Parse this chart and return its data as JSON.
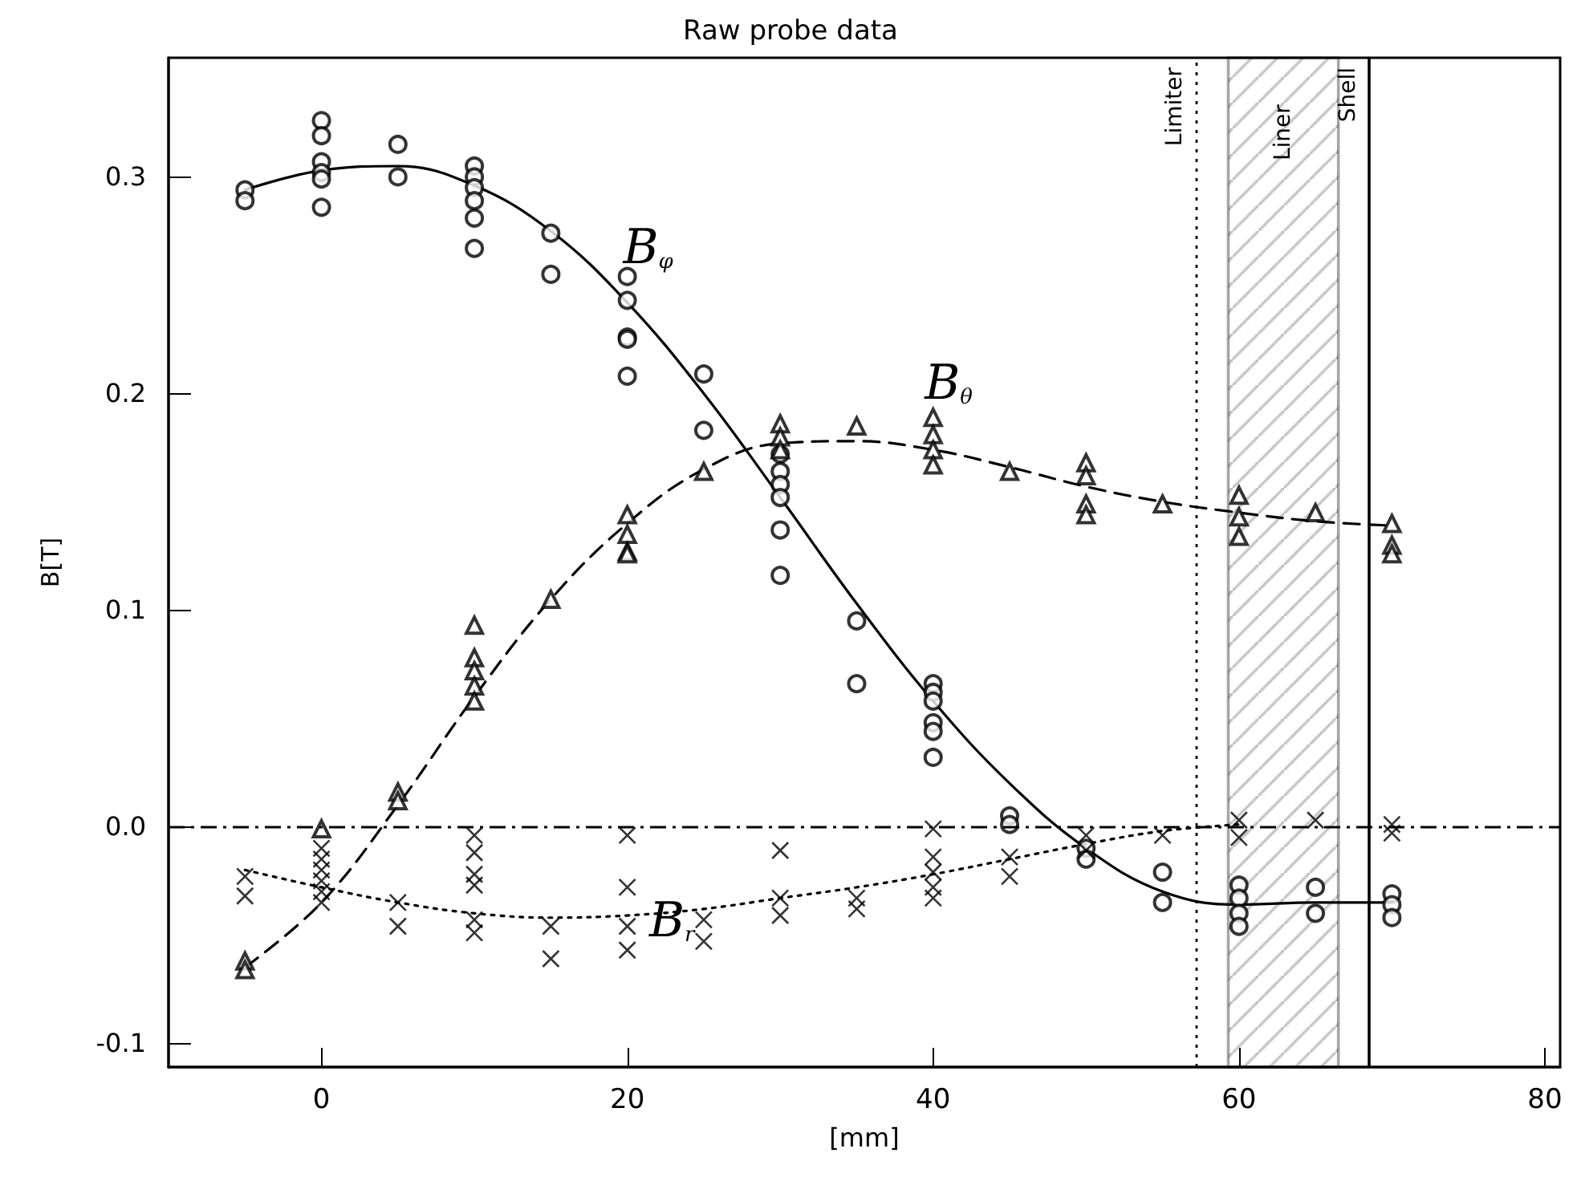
{
  "chart_data": {
    "type": "scatter",
    "title": "Raw probe data",
    "xlabel": "[mm]",
    "ylabel": "B[T]",
    "xlim": [
      -10,
      81
    ],
    "xticks": [
      0,
      20,
      40,
      60,
      80
    ],
    "ylim": [
      -0.111,
      0.355
    ],
    "yticks": [
      -0.1,
      {
        "value": 0,
        "label": "0.0"
      },
      0.1,
      0.2,
      0.3
    ],
    "grid": false,
    "series": [
      {
        "marker": "circle",
        "color": "#000000",
        "x": [
          -5,
          -5,
          0,
          0,
          0,
          0,
          0,
          0,
          5,
          5,
          10,
          10,
          10,
          10,
          10,
          10,
          15,
          15,
          20,
          20,
          20,
          20,
          20,
          25,
          25,
          30,
          30,
          30,
          30,
          30,
          30,
          35,
          35,
          40,
          40,
          40,
          40,
          40,
          40,
          45,
          45,
          50,
          50,
          55,
          55,
          60,
          60,
          60,
          60,
          65,
          65,
          70,
          70,
          70
        ],
        "values": [
          0.294,
          0.289,
          0.326,
          0.319,
          0.307,
          0.302,
          0.299,
          0.286,
          0.315,
          0.3,
          0.305,
          0.3,
          0.295,
          0.289,
          0.281,
          0.267,
          0.274,
          0.255,
          0.254,
          0.243,
          0.226,
          0.225,
          0.208,
          0.209,
          0.183,
          0.172,
          0.164,
          0.158,
          0.152,
          0.137,
          0.116,
          0.095,
          0.066,
          0.066,
          0.062,
          0.058,
          0.048,
          0.044,
          0.032,
          0.005,
          0.001,
          -0.01,
          -0.015,
          -0.021,
          -0.035,
          -0.027,
          -0.033,
          -0.04,
          -0.046,
          -0.028,
          -0.04,
          -0.031,
          -0.036,
          -0.042
        ]
      },
      {
        "marker": "triangle",
        "color": "#000000",
        "x": [
          -5,
          -5,
          0,
          5,
          5,
          10,
          10,
          10,
          10,
          10,
          15,
          20,
          20,
          20,
          20,
          25,
          30,
          30,
          30,
          35,
          40,
          40,
          40,
          40,
          45,
          50,
          50,
          50,
          50,
          55,
          60,
          60,
          60,
          65,
          70,
          70,
          70
        ],
        "values": [
          -0.062,
          -0.066,
          -0.001,
          0.016,
          0.012,
          0.093,
          0.078,
          0.072,
          0.065,
          0.058,
          0.105,
          0.144,
          0.135,
          0.127,
          0.126,
          0.164,
          0.186,
          0.18,
          0.174,
          0.185,
          0.189,
          0.181,
          0.174,
          0.167,
          0.164,
          0.168,
          0.162,
          0.149,
          0.144,
          0.149,
          0.153,
          0.143,
          0.134,
          0.145,
          0.14,
          0.13,
          0.126
        ]
      },
      {
        "marker": "cross",
        "color": "#000000",
        "x": [
          -5,
          -5,
          0,
          0,
          0,
          0,
          0,
          0,
          5,
          5,
          10,
          10,
          10,
          10,
          10,
          10,
          15,
          15,
          20,
          20,
          20,
          20,
          25,
          25,
          30,
          30,
          30,
          35,
          35,
          40,
          40,
          40,
          40,
          40,
          45,
          45,
          50,
          50,
          55,
          60,
          60,
          65,
          70,
          70
        ],
        "values": [
          -0.023,
          -0.032,
          -0.01,
          -0.015,
          -0.02,
          -0.025,
          -0.03,
          -0.035,
          -0.035,
          -0.046,
          -0.004,
          -0.012,
          -0.022,
          -0.027,
          -0.043,
          -0.049,
          -0.046,
          -0.061,
          -0.004,
          -0.028,
          -0.046,
          -0.057,
          -0.043,
          -0.053,
          -0.011,
          -0.033,
          -0.041,
          -0.033,
          -0.038,
          -0.001,
          -0.014,
          -0.021,
          -0.028,
          -0.033,
          -0.014,
          -0.023,
          -0.004,
          -0.011,
          -0.004,
          0.003,
          -0.005,
          0.003,
          -0.003,
          0.001
        ]
      },
      {
        "type": "line",
        "marker": "none",
        "line_style": "solid",
        "color": "#000000",
        "x": [
          -5,
          0,
          5,
          10,
          15,
          20,
          25,
          30,
          35,
          40,
          45,
          50,
          55,
          60,
          65,
          70
        ],
        "values": [
          0.294,
          0.303,
          0.305,
          0.296,
          0.275,
          0.242,
          0.2,
          0.152,
          0.103,
          0.058,
          0.02,
          -0.01,
          -0.03,
          -0.036,
          -0.035,
          -0.035
        ]
      },
      {
        "type": "line",
        "marker": "none",
        "line_style": "dashed",
        "color": "#000000",
        "x": [
          -5,
          0,
          5,
          10,
          15,
          20,
          25,
          30,
          35,
          40,
          45,
          50,
          55,
          60,
          65,
          70
        ],
        "values": [
          -0.065,
          -0.035,
          0.01,
          0.06,
          0.105,
          0.14,
          0.165,
          0.177,
          0.178,
          0.174,
          0.166,
          0.157,
          0.15,
          0.145,
          0.141,
          0.139
        ]
      },
      {
        "type": "line",
        "marker": "none",
        "line_style": "dotted",
        "color": "#000000",
        "x": [
          -5,
          0,
          5,
          10,
          15,
          20,
          25,
          30,
          35,
          40,
          45,
          50,
          55,
          60
        ],
        "values": [
          -0.02,
          -0.028,
          -0.035,
          -0.04,
          -0.042,
          -0.041,
          -0.038,
          -0.033,
          -0.028,
          -0.022,
          -0.015,
          -0.008,
          -0.002,
          0.001
        ]
      }
    ],
    "ref_lines": [
      {
        "axis": "y",
        "value": 0,
        "label": null,
        "line_style": "dashed",
        "color": "#000000"
      },
      {
        "axis": "x",
        "value": 57.2,
        "label": "Limiter",
        "line_style": "dotted",
        "color": "#000000"
      },
      {
        "axis": "x",
        "value": 68.5,
        "label": "Shell",
        "line_style": "solid",
        "color": "#000000"
      }
    ],
    "bands": [
      {
        "axis": "x",
        "from": 59.3,
        "to": 66.5,
        "label": "Liner",
        "color": "#000000"
      }
    ],
    "annotations": [
      "B$_{φ}$",
      "B$_{θ}$",
      "B$_{r}$"
    ]
  }
}
